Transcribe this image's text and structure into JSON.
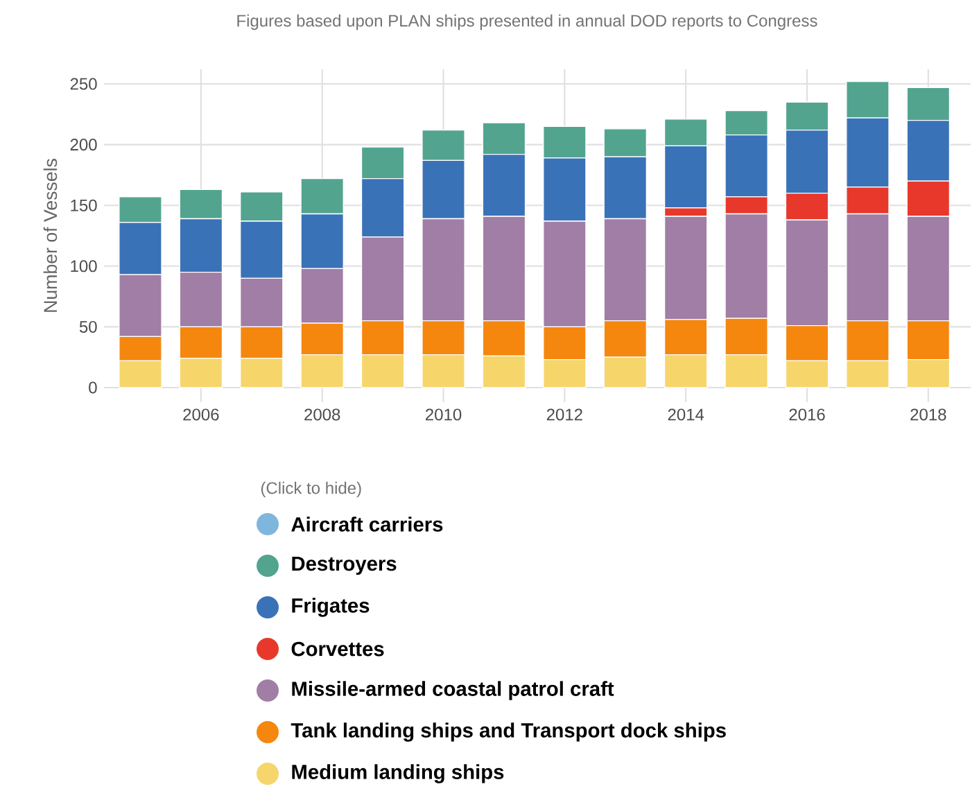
{
  "chart_data": {
    "type": "bar",
    "stacked": true,
    "title": "Figures based upon PLAN ships presented in annual DOD reports to Congress",
    "ylabel": "Number of Vessels",
    "legend_title": "(Click to hide)",
    "x": [
      2005,
      2006,
      2007,
      2008,
      2009,
      2010,
      2011,
      2012,
      2013,
      2014,
      2015,
      2016,
      2017,
      2018
    ],
    "xlim": [
      2004.4,
      2018.7
    ],
    "xticks": [
      2006,
      2008,
      2010,
      2012,
      2014,
      2016,
      2018
    ],
    "ylim": [
      -12,
      262
    ],
    "yticks": [
      0,
      50,
      100,
      150,
      200,
      250
    ],
    "grid": true,
    "legend": "bottom",
    "marker": "circle",
    "series": [
      {
        "name": "Medium landing ships",
        "color": "#f6d56b",
        "values": [
          22,
          24,
          24,
          27,
          27,
          27,
          26,
          23,
          25,
          27,
          27,
          22,
          22,
          23
        ]
      },
      {
        "name": "Tank landing ships and Transport dock ships",
        "color": "#f5870f",
        "values": [
          20,
          26,
          26,
          26,
          28,
          28,
          29,
          27,
          30,
          29,
          30,
          29,
          33,
          32
        ]
      },
      {
        "name": "Missile-armed coastal patrol craft",
        "color": "#a17ea5",
        "values": [
          51,
          45,
          40,
          45,
          69,
          84,
          86,
          87,
          84,
          85,
          86,
          87,
          88,
          86
        ]
      },
      {
        "name": "Corvettes",
        "color": "#e8382b",
        "values": [
          0,
          0,
          0,
          0,
          0,
          0,
          0,
          0,
          0,
          7,
          14,
          22,
          22,
          29
        ]
      },
      {
        "name": "Frigates",
        "color": "#3a72b8",
        "values": [
          43,
          44,
          47,
          45,
          48,
          48,
          51,
          52,
          51,
          51,
          51,
          52,
          57,
          50
        ]
      },
      {
        "name": "Destroyers",
        "color": "#52a48f",
        "values": [
          21,
          24,
          24,
          29,
          26,
          25,
          26,
          26,
          23,
          22,
          20,
          23,
          30,
          27
        ]
      },
      {
        "name": "Aircraft carriers",
        "color": "#7fb6dd",
        "values": [
          null,
          null,
          null,
          null,
          null,
          null,
          null,
          null,
          null,
          null,
          null,
          null,
          null,
          null
        ]
      }
    ]
  }
}
